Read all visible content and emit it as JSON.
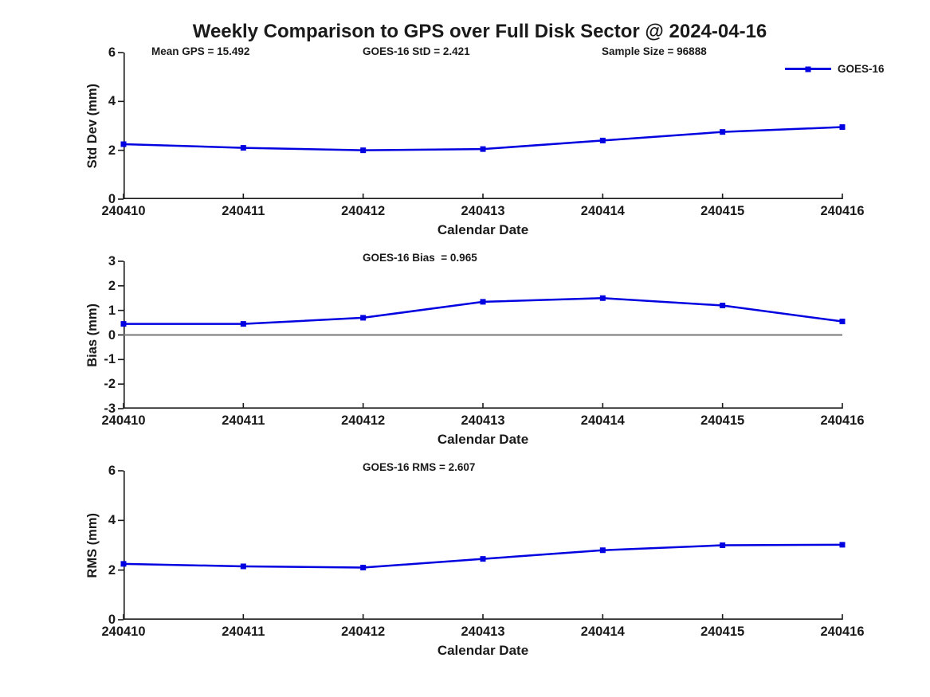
{
  "title": "Weekly Comparison to GPS over Full Disk Sector @ 2024-04-16",
  "colors": {
    "background": "#ffffff",
    "text": "#1a1a1a",
    "axis": "#1a1a1a",
    "line": "#0000e0",
    "zero_line": "#777777"
  },
  "chart_data": [
    {
      "type": "line",
      "name": "std-dev",
      "annotations": [
        "Mean GPS = 15.492",
        "GOES-16 StD = 2.421",
        "Sample Size = 96888"
      ],
      "categories": [
        "240410",
        "240411",
        "240412",
        "240413",
        "240414",
        "240415",
        "240416"
      ],
      "series": [
        {
          "name": "GOES-16",
          "values": [
            2.25,
            2.1,
            2.0,
            2.05,
            2.4,
            2.75,
            2.95
          ]
        }
      ],
      "xlabel": "Calendar Date",
      "ylabel": "Std Dev (mm)",
      "ylim": [
        0,
        6
      ],
      "yticks": [
        0,
        2,
        4,
        6
      ],
      "legend": {
        "label": "GOES-16",
        "position": "top-right"
      },
      "zero_line": false,
      "grid": false
    },
    {
      "type": "line",
      "name": "bias",
      "annotations": [
        "GOES-16 Bias  = 0.965"
      ],
      "categories": [
        "240410",
        "240411",
        "240412",
        "240413",
        "240414",
        "240415",
        "240416"
      ],
      "series": [
        {
          "name": "GOES-16",
          "values": [
            0.45,
            0.45,
            0.7,
            1.35,
            1.5,
            1.2,
            0.55
          ]
        }
      ],
      "xlabel": "Calendar Date",
      "ylabel": "Bias (mm)",
      "ylim": [
        -3,
        3
      ],
      "yticks": [
        -3,
        -2,
        -1,
        0,
        1,
        2,
        3
      ],
      "zero_line": true,
      "grid": false
    },
    {
      "type": "line",
      "name": "rms",
      "annotations": [
        "GOES-16 RMS = 2.607"
      ],
      "categories": [
        "240410",
        "240411",
        "240412",
        "240413",
        "240414",
        "240415",
        "240416"
      ],
      "series": [
        {
          "name": "GOES-16",
          "values": [
            2.25,
            2.15,
            2.1,
            2.45,
            2.8,
            3.0,
            3.02
          ]
        }
      ],
      "xlabel": "Calendar Date",
      "ylabel": "RMS (mm)",
      "ylim": [
        0,
        6
      ],
      "yticks": [
        0,
        2,
        4,
        6
      ],
      "zero_line": false,
      "grid": false
    }
  ]
}
